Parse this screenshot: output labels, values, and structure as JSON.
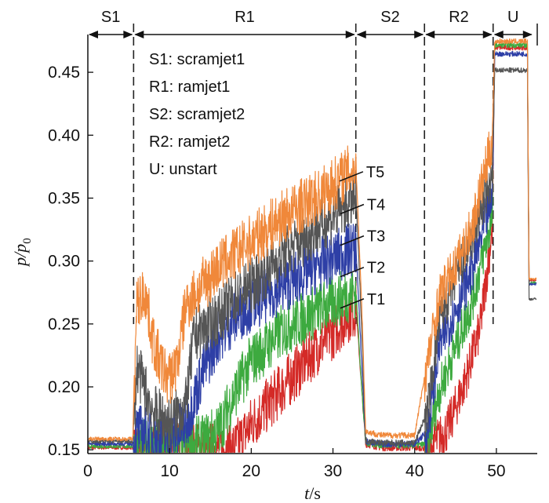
{
  "chart_data": {
    "type": "line",
    "xlabel": {
      "italic": "t",
      "rest": "/s"
    },
    "ylabel": {
      "base": "p/p",
      "sub": "0"
    },
    "xlim": [
      0,
      55
    ],
    "ylim": [
      0.147,
      0.48
    ],
    "x_ticks": [
      0,
      10,
      20,
      30,
      40,
      50
    ],
    "y_ticks": [
      "0.15",
      "0.20",
      "0.25",
      "0.30",
      "0.35",
      "0.40",
      "0.45"
    ],
    "grid": false,
    "regions": [
      {
        "label": "S1",
        "start": 0,
        "end": 5.6
      },
      {
        "label": "R1",
        "start": 5.6,
        "end": 32.8
      },
      {
        "label": "S2",
        "start": 32.8,
        "end": 41.2
      },
      {
        "label": "R2",
        "start": 41.2,
        "end": 49.6
      },
      {
        "label": "U",
        "start": 49.6,
        "end": 54.5
      }
    ],
    "region_definitions": [
      "S1: scramjet1",
      "R1: ramjet1",
      "S2: scramjet2",
      "R2: ramjet2",
      "U: unstart"
    ],
    "series": [
      {
        "name": "T1",
        "color": "#d42a27",
        "points": [
          [
            0,
            0.152
          ],
          [
            5.5,
            0.152
          ],
          [
            6,
            0.154
          ],
          [
            8,
            0.154
          ],
          [
            12,
            0.154
          ],
          [
            16,
            0.155
          ],
          [
            18,
            0.156
          ],
          [
            19,
            0.165
          ],
          [
            20,
            0.175
          ],
          [
            22,
            0.19
          ],
          [
            24,
            0.205
          ],
          [
            26,
            0.22
          ],
          [
            28,
            0.235
          ],
          [
            30,
            0.248
          ],
          [
            31,
            0.255
          ],
          [
            32,
            0.262
          ],
          [
            32.8,
            0.266
          ],
          [
            33.5,
            0.2
          ],
          [
            34,
            0.155
          ],
          [
            36,
            0.152
          ],
          [
            40,
            0.152
          ],
          [
            41.5,
            0.152
          ],
          [
            44,
            0.17
          ],
          [
            46,
            0.205
          ],
          [
            48,
            0.25
          ],
          [
            49.5,
            0.33
          ],
          [
            49.8,
            0.47
          ],
          [
            53.8,
            0.47
          ],
          [
            54,
            0.285
          ],
          [
            55,
            0.285
          ]
        ]
      },
      {
        "name": "T2",
        "color": "#3daa3f",
        "points": [
          [
            0,
            0.153
          ],
          [
            5.5,
            0.153
          ],
          [
            6,
            0.157
          ],
          [
            8,
            0.158
          ],
          [
            12,
            0.158
          ],
          [
            14,
            0.16
          ],
          [
            16,
            0.17
          ],
          [
            18,
            0.2
          ],
          [
            20,
            0.225
          ],
          [
            24,
            0.25
          ],
          [
            28,
            0.265
          ],
          [
            31,
            0.275
          ],
          [
            32.8,
            0.28
          ],
          [
            33.5,
            0.2
          ],
          [
            34,
            0.156
          ],
          [
            36,
            0.154
          ],
          [
            40,
            0.154
          ],
          [
            41.5,
            0.155
          ],
          [
            43,
            0.2
          ],
          [
            45,
            0.235
          ],
          [
            47,
            0.27
          ],
          [
            49.5,
            0.34
          ],
          [
            49.8,
            0.472
          ],
          [
            53.8,
            0.472
          ],
          [
            54,
            0.283
          ],
          [
            55,
            0.283
          ]
        ]
      },
      {
        "name": "T3",
        "color": "#2e3fa6",
        "points": [
          [
            0,
            0.155
          ],
          [
            5.5,
            0.155
          ],
          [
            6,
            0.17
          ],
          [
            8,
            0.165
          ],
          [
            10,
            0.162
          ],
          [
            12,
            0.175
          ],
          [
            14,
            0.215
          ],
          [
            16,
            0.245
          ],
          [
            18,
            0.26
          ],
          [
            20,
            0.27
          ],
          [
            24,
            0.285
          ],
          [
            28,
            0.3
          ],
          [
            31,
            0.31
          ],
          [
            32.8,
            0.315
          ],
          [
            33.5,
            0.22
          ],
          [
            34,
            0.157
          ],
          [
            36,
            0.155
          ],
          [
            40,
            0.155
          ],
          [
            41.5,
            0.165
          ],
          [
            43,
            0.235
          ],
          [
            45,
            0.265
          ],
          [
            47,
            0.295
          ],
          [
            49.5,
            0.355
          ],
          [
            49.8,
            0.465
          ],
          [
            53.8,
            0.465
          ],
          [
            54,
            0.282
          ],
          [
            55,
            0.282
          ]
        ]
      },
      {
        "name": "T4",
        "color": "#555555",
        "points": [
          [
            0,
            0.157
          ],
          [
            5.5,
            0.157
          ],
          [
            6,
            0.22
          ],
          [
            8,
            0.185
          ],
          [
            10,
            0.175
          ],
          [
            12,
            0.19
          ],
          [
            13,
            0.245
          ],
          [
            16,
            0.26
          ],
          [
            18,
            0.275
          ],
          [
            20,
            0.285
          ],
          [
            24,
            0.31
          ],
          [
            28,
            0.33
          ],
          [
            31,
            0.345
          ],
          [
            32.8,
            0.355
          ],
          [
            33.5,
            0.25
          ],
          [
            34,
            0.158
          ],
          [
            36,
            0.156
          ],
          [
            40,
            0.156
          ],
          [
            41.5,
            0.18
          ],
          [
            43,
            0.255
          ],
          [
            45,
            0.29
          ],
          [
            47,
            0.32
          ],
          [
            49.5,
            0.37
          ],
          [
            49.8,
            0.452
          ],
          [
            53.8,
            0.452
          ],
          [
            54,
            0.27
          ],
          [
            55,
            0.27
          ]
        ]
      },
      {
        "name": "T5",
        "color": "#f0883a",
        "points": [
          [
            0,
            0.159
          ],
          [
            5.5,
            0.159
          ],
          [
            6,
            0.27
          ],
          [
            7,
            0.28
          ],
          [
            8,
            0.24
          ],
          [
            9,
            0.22
          ],
          [
            10,
            0.21
          ],
          [
            11,
            0.225
          ],
          [
            12,
            0.27
          ],
          [
            14,
            0.285
          ],
          [
            16,
            0.3
          ],
          [
            18,
            0.31
          ],
          [
            20,
            0.32
          ],
          [
            24,
            0.34
          ],
          [
            28,
            0.355
          ],
          [
            31,
            0.37
          ],
          [
            32.8,
            0.38
          ],
          [
            33.5,
            0.27
          ],
          [
            34,
            0.165
          ],
          [
            36,
            0.162
          ],
          [
            40,
            0.162
          ],
          [
            41.5,
            0.22
          ],
          [
            43,
            0.275
          ],
          [
            45,
            0.3
          ],
          [
            47,
            0.33
          ],
          [
            49.5,
            0.4
          ],
          [
            49.8,
            0.475
          ],
          [
            53.8,
            0.475
          ],
          [
            54,
            0.286
          ],
          [
            55,
            0.286
          ]
        ]
      }
    ],
    "series_label_anchors": [
      {
        "name": "T5",
        "at": [
          30.8,
          0.366
        ]
      },
      {
        "name": "T4",
        "at": [
          30.9,
          0.34
        ]
      },
      {
        "name": "T3",
        "at": [
          30.9,
          0.315
        ]
      },
      {
        "name": "T2",
        "at": [
          30.9,
          0.29
        ]
      },
      {
        "name": "T1",
        "at": [
          30.9,
          0.265
        ]
      }
    ]
  }
}
